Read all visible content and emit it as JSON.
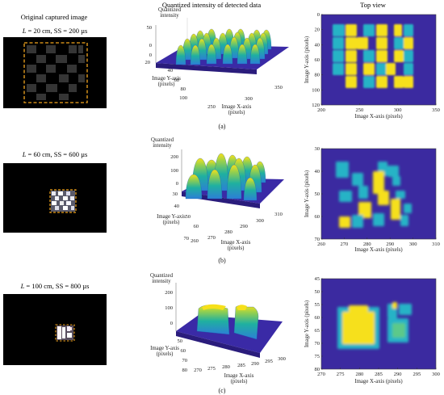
{
  "headers": {
    "col1": "Original captured image",
    "col2": "Quantized intensity of detected data",
    "col3": "Top view"
  },
  "colors": {
    "plot_bg": "#3b2aa0",
    "low": "#3a28a8",
    "mid": "#1fa3a6",
    "high": "#f6e01a",
    "dashed": "#f2a51e",
    "capture_bg": "#000000"
  },
  "rows": [
    {
      "label": "(a)",
      "condition": {
        "L_var": "L",
        "rest": " = 20 cm, SS = 200 µs"
      },
      "surface": {
        "zlabel": [
          "Quantized",
          "intensity"
        ],
        "zticks": [
          "50",
          "0"
        ],
        "yticks": [
          "0",
          "20",
          "40",
          "60",
          "80",
          "100"
        ],
        "xticks": [
          "250",
          "300",
          "350"
        ],
        "ylabel": [
          "Image Y-axis",
          "(pixels)"
        ],
        "xlabel": [
          "Image X-axis",
          "(pixels)"
        ]
      },
      "top": {
        "yticks": [
          "0",
          "20",
          "40",
          "60",
          "80",
          "100",
          "120"
        ],
        "xticks": [
          "200",
          "250",
          "300",
          "350"
        ],
        "ylabel": "Image Y-axis (pixels)",
        "xlabel": "Image X-axis (pixels)"
      }
    },
    {
      "label": "(b)",
      "condition": {
        "L_var": "L",
        "rest": " = 60 cm, SS = 600 µs"
      },
      "surface": {
        "zlabel": [
          "Quantized",
          "intensity"
        ],
        "zticks": [
          "200",
          "100",
          "0"
        ],
        "yticks": [
          "30",
          "40",
          "50",
          "60",
          "70"
        ],
        "xticks": [
          "260",
          "270",
          "280",
          "290",
          "300",
          "310"
        ],
        "ylabel": [
          "Image Y-axis",
          "(pixels)"
        ],
        "xlabel": [
          "Image X-axis",
          "(pixels)"
        ]
      },
      "top": {
        "yticks": [
          "30",
          "40",
          "50",
          "60",
          "70"
        ],
        "xticks": [
          "260",
          "270",
          "280",
          "290",
          "300",
          "310"
        ],
        "ylabel": "Image Y-axis (pixels)",
        "xlabel": "Image X-axis (pixels)"
      }
    },
    {
      "label": "(c)",
      "condition": {
        "L_var": "L",
        "rest": " = 100 cm, SS = 800 µs"
      },
      "surface": {
        "zlabel": [
          "Quantized",
          "intensity"
        ],
        "zticks": [
          "200",
          "100",
          "0"
        ],
        "yticks": [
          "50",
          "60",
          "70",
          "80"
        ],
        "xticks": [
          "270",
          "275",
          "280",
          "285",
          "290",
          "295",
          "300"
        ],
        "ylabel": [
          "Image Y-axis",
          "(pixels)"
        ],
        "xlabel": [
          "Image X-axis",
          "(pixels)"
        ]
      },
      "top": {
        "yticks": [
          "45",
          "50",
          "55",
          "60",
          "65",
          "70",
          "75",
          "80"
        ],
        "xticks": [
          "270",
          "275",
          "280",
          "285",
          "290",
          "295",
          "300"
        ],
        "ylabel": "Image Y-axis (pixels)",
        "xlabel": "Image X-axis (pixels)"
      }
    }
  ]
}
